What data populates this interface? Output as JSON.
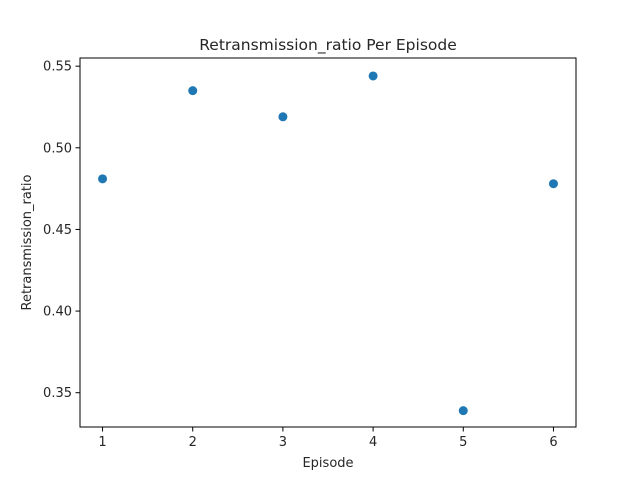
{
  "chart_data": {
    "type": "scatter",
    "title": "Retransmission_ratio Per Episode",
    "xlabel": "Episode",
    "ylabel": "Retransmission_ratio",
    "x": [
      1,
      2,
      3,
      4,
      5,
      6
    ],
    "y": [
      0.481,
      0.535,
      0.519,
      0.544,
      0.339,
      0.478
    ],
    "xlim": [
      0.75,
      6.25
    ],
    "ylim": [
      0.329,
      0.555
    ],
    "xticks": [
      1,
      2,
      3,
      4,
      5,
      6
    ],
    "yticks": [
      0.35,
      0.4,
      0.45,
      0.5,
      0.55
    ],
    "ytick_labels": [
      "0.35",
      "0.40",
      "0.45",
      "0.50",
      "0.55"
    ],
    "grid": false,
    "marker_color": "#1f77b4"
  }
}
